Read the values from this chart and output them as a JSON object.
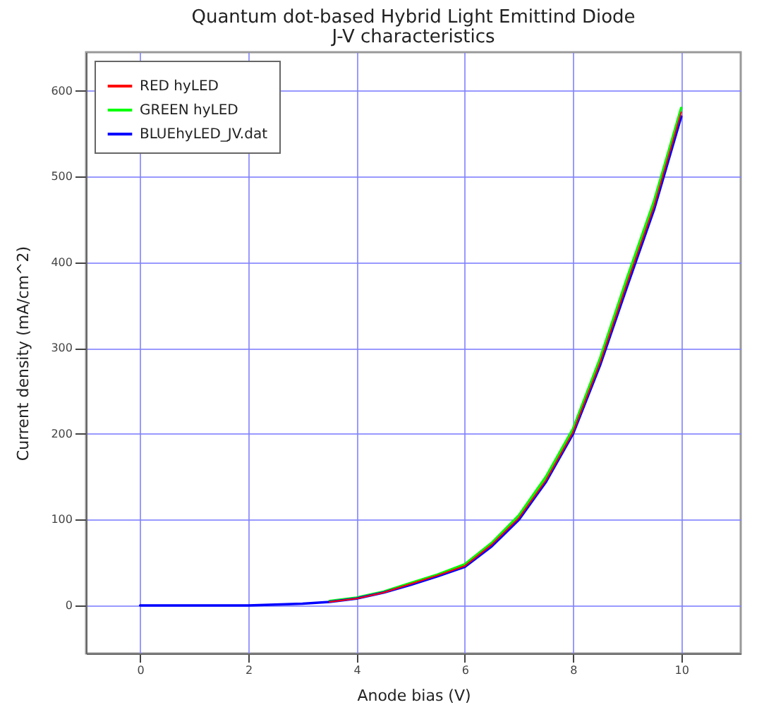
{
  "chart_data": {
    "type": "line",
    "title": "Quantum dot-based Hybrid Light Emittind Diode",
    "subtitle": "J-V characteristics",
    "xlabel": "Anode bias (V)",
    "ylabel": "Current density (mA/cm^2)",
    "x": [
      0,
      1,
      2,
      2.5,
      3,
      3.5,
      4,
      4.5,
      5,
      5.5,
      6,
      6.5,
      7,
      7.5,
      8,
      8.5,
      9,
      9.5,
      10
    ],
    "series": [
      {
        "name": "RED hyLED",
        "color": "#ff0000",
        "values": [
          null,
          null,
          null,
          null,
          null,
          4,
          8,
          15,
          25,
          35,
          46,
          71,
          102,
          146,
          202,
          283,
          376,
          466,
          575
        ]
      },
      {
        "name": "GREEN hyLED",
        "color": "#00ff00",
        "values": [
          null,
          null,
          null,
          null,
          null,
          5,
          9,
          16,
          26,
          36,
          48,
          73,
          105,
          150,
          206,
          288,
          382,
          472,
          580
        ]
      },
      {
        "name": "BLUEhyLED_JV.dat",
        "color": "#0000ff",
        "values": [
          0,
          0,
          0,
          1,
          2,
          4,
          8,
          15,
          24,
          34,
          45,
          69,
          100,
          144,
          200,
          280,
          372,
          462,
          570
        ]
      }
    ],
    "xlim": [
      -1,
      11.1
    ],
    "ylim": [
      -56,
      645
    ],
    "xticks": [
      0,
      2,
      4,
      6,
      8,
      10
    ],
    "yticks": [
      0,
      100,
      200,
      300,
      400,
      500,
      600
    ],
    "grid": true,
    "legend": "top left",
    "marker": "none",
    "line_style": "solid"
  }
}
